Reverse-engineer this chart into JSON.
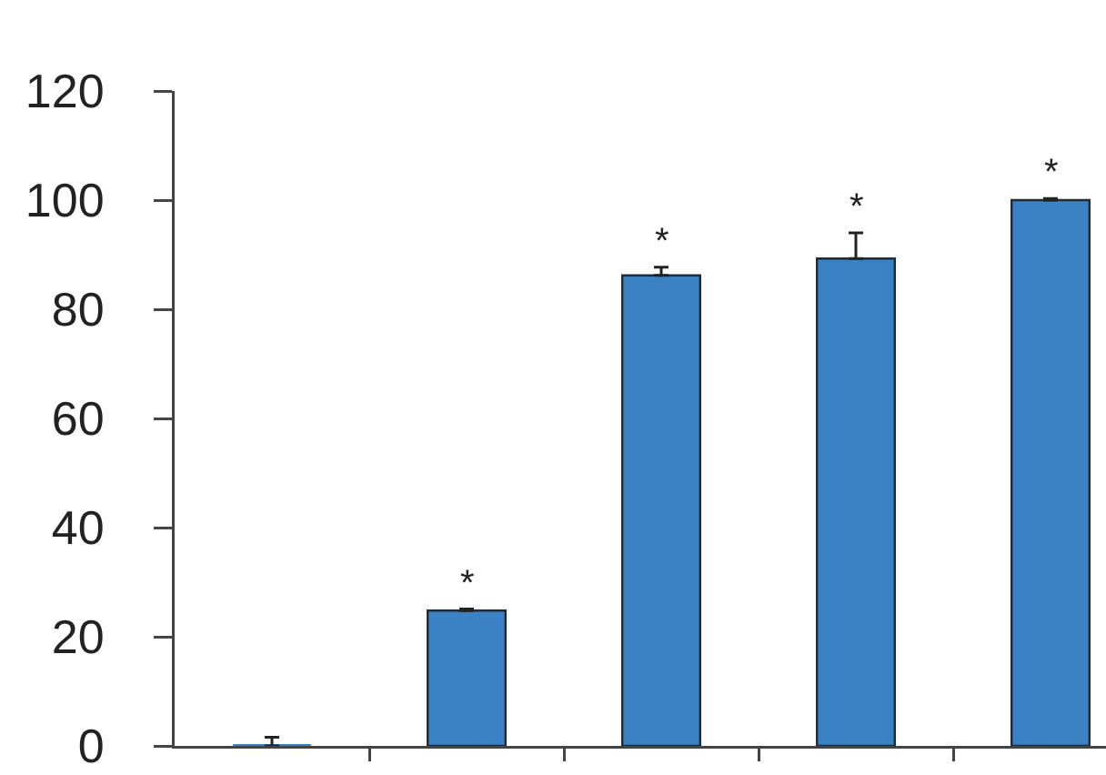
{
  "chart_data": {
    "type": "bar",
    "categories": [
      null,
      null,
      null,
      null,
      null
    ],
    "values": [
      0,
      24.8,
      86.2,
      89.3,
      100
    ],
    "errors": [
      [
        0,
        1.6
      ],
      [
        24.8,
        25.1
      ],
      [
        86.2,
        87.7
      ],
      [
        89.3,
        94
      ],
      [
        100,
        100.3
      ]
    ],
    "color": "#3b82c4",
    "ylim": [
      0,
      120
    ],
    "yticks": [
      0,
      20,
      40,
      60,
      80,
      100,
      120
    ],
    "annotations": [
      {
        "text": "*",
        "y": 24.8
      },
      {
        "text": "*",
        "y": 86.2
      },
      {
        "text": "*",
        "y": 89.3
      },
      {
        "text": "*",
        "y": 100
      }
    ]
  }
}
